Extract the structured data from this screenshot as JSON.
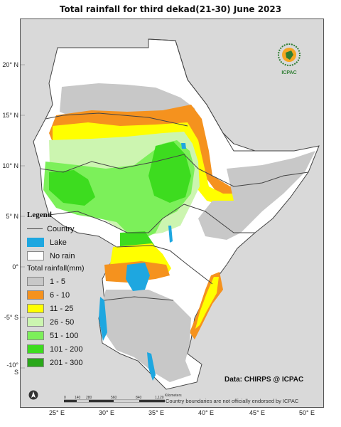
{
  "title": "Total rainfall  for third dekad(21-30)  June  2023",
  "lat_labels": [
    "20° N",
    "15° N",
    "10° N",
    "5° N",
    "0°",
    "-5° S",
    "-10° S"
  ],
  "lon_labels": [
    "25° E",
    "30° E",
    "35° E",
    "40° E",
    "45° E",
    "50° E"
  ],
  "legend": {
    "title": "Legend",
    "country_label": "Country",
    "lake_label": "Lake",
    "norain_label": "No rain",
    "rain_title": "Total rainfall(mm)",
    "classes": [
      {
        "label": "1 - 5",
        "color": "#c8c8c8"
      },
      {
        "label": "6 - 10",
        "color": "#f5921e"
      },
      {
        "label": "11 - 25",
        "color": "#ffff00"
      },
      {
        "label": "26 - 50",
        "color": "#ccf5b0"
      },
      {
        "label": "51 - 100",
        "color": "#7cf05a"
      },
      {
        "label": "101 - 200",
        "color": "#3ddc1f"
      },
      {
        "label": "201 - 300",
        "color": "#2aa81a"
      }
    ],
    "lake_color": "#1ea7e0"
  },
  "scale_bar": {
    "ticks": [
      "0",
      "140",
      "280",
      "560",
      "840",
      "1,120"
    ],
    "unit": "Kilometers"
  },
  "data_credit": "Data: CHIRPS @ ICPAC",
  "disclaimer": "Country boundaries are not officially endorsed by ICPAC",
  "logo": {
    "top": "IGAD",
    "bottom": "ICPAC"
  },
  "north_arrow": "north-arrow-icon"
}
